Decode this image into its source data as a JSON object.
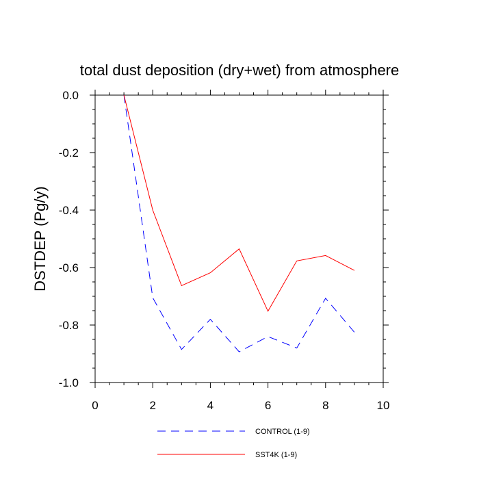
{
  "chart_data": {
    "type": "line",
    "title": "total dust deposition (dry+wet) from atmosphere",
    "ylabel": "DSTDEP  (Pg/y)",
    "xlabel": "",
    "xlim": [
      0,
      10
    ],
    "ylim": [
      -1.0,
      0.0
    ],
    "xticks": [
      0,
      2,
      4,
      6,
      8,
      10
    ],
    "yticks": [
      0.0,
      -0.2,
      -0.4,
      -0.6,
      -0.8,
      -1.0
    ],
    "x_tick_labels": [
      "0",
      "2",
      "4",
      "6",
      "8",
      "10"
    ],
    "y_tick_labels": [
      "0.0",
      "-0.2",
      "-0.4",
      "-0.6",
      "-0.8",
      "-1.0"
    ],
    "grid": false,
    "legend_position": "bottom",
    "series": [
      {
        "name": "CONTROL (1-9)",
        "color": "#0000ff",
        "dash": "dashed",
        "x": [
          1,
          2,
          3,
          4,
          5,
          6,
          7,
          8,
          9
        ],
        "values": [
          0.0,
          -0.705,
          -0.885,
          -0.78,
          -0.893,
          -0.84,
          -0.88,
          -0.707,
          -0.825
        ]
      },
      {
        "name": "SST4K (1-9)",
        "color": "#ff0000",
        "dash": "solid",
        "x": [
          1,
          2,
          3,
          4,
          5,
          6,
          7,
          8,
          9
        ],
        "values": [
          0.0,
          -0.4,
          -0.663,
          -0.618,
          -0.535,
          -0.752,
          -0.577,
          -0.558,
          -0.61
        ]
      }
    ]
  }
}
